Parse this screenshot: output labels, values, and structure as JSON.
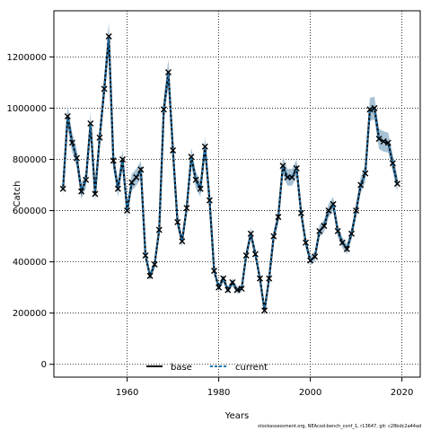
{
  "chart_data": {
    "type": "line",
    "title": "",
    "xlabel": "Years",
    "ylabel": "Catch",
    "xlim": [
      1944,
      2024
    ],
    "ylim": [
      -50000,
      1380000
    ],
    "x_ticks": [
      1960,
      1980,
      2000,
      2020
    ],
    "y_ticks": [
      0,
      200000,
      400000,
      600000,
      800000,
      1000000,
      1200000
    ],
    "grid": true,
    "legend_position": "bottom-center",
    "colors": {
      "base": "#000000",
      "current": "#1f77b4",
      "band": "#9dbbd0"
    },
    "x": [
      1946,
      1947,
      1948,
      1949,
      1950,
      1951,
      1952,
      1953,
      1954,
      1955,
      1956,
      1957,
      1958,
      1959,
      1960,
      1961,
      1962,
      1963,
      1964,
      1965,
      1966,
      1967,
      1968,
      1969,
      1970,
      1971,
      1972,
      1973,
      1974,
      1975,
      1976,
      1977,
      1978,
      1979,
      1980,
      1981,
      1982,
      1983,
      1984,
      1985,
      1986,
      1987,
      1988,
      1989,
      1990,
      1991,
      1992,
      1993,
      1994,
      1995,
      1996,
      1997,
      1998,
      1999,
      2000,
      2001,
      2002,
      2003,
      2004,
      2005,
      2006,
      2007,
      2008,
      2009,
      2010,
      2011,
      2012,
      2013,
      2014,
      2015,
      2016,
      2017,
      2018,
      2019
    ],
    "series": [
      {
        "name": "base",
        "values": [
          685000,
          968000,
          865000,
          805000,
          675000,
          720000,
          940000,
          665000,
          885000,
          1075000,
          1280000,
          795000,
          685000,
          800000,
          600000,
          710000,
          730000,
          760000,
          425000,
          345000,
          390000,
          525000,
          995000,
          1140000,
          835000,
          555000,
          480000,
          610000,
          810000,
          720000,
          685000,
          850000,
          640000,
          365000,
          300000,
          335000,
          290000,
          320000,
          290000,
          295000,
          425000,
          510000,
          430000,
          335000,
          210000,
          335000,
          500000,
          575000,
          775000,
          730000,
          730000,
          765000,
          590000,
          475000,
          405000,
          420000,
          520000,
          540000,
          600000,
          625000,
          520000,
          475000,
          450000,
          510000,
          600000,
          700000,
          745000,
          995000,
          1000000,
          880000,
          870000,
          865000,
          785000,
          705000
        ]
      },
      {
        "name": "current",
        "values": [
          685000,
          968000,
          865000,
          805000,
          675000,
          720000,
          940000,
          665000,
          885000,
          1075000,
          1280000,
          795000,
          685000,
          800000,
          600000,
          710000,
          730000,
          760000,
          425000,
          345000,
          390000,
          525000,
          995000,
          1140000,
          835000,
          555000,
          480000,
          610000,
          810000,
          720000,
          685000,
          850000,
          640000,
          365000,
          300000,
          335000,
          290000,
          320000,
          290000,
          295000,
          425000,
          510000,
          430000,
          335000,
          210000,
          335000,
          500000,
          575000,
          775000,
          730000,
          730000,
          765000,
          590000,
          475000,
          405000,
          420000,
          520000,
          540000,
          600000,
          625000,
          520000,
          475000,
          450000,
          510000,
          600000,
          700000,
          745000,
          995000,
          1000000,
          880000,
          870000,
          865000,
          785000,
          705000
        ]
      }
    ],
    "legend": [
      "base",
      "current"
    ]
  },
  "footer_text": "stockassessment.org, NEAcod-bench_conf_1, r13647, git: c28bdc2a44ad"
}
